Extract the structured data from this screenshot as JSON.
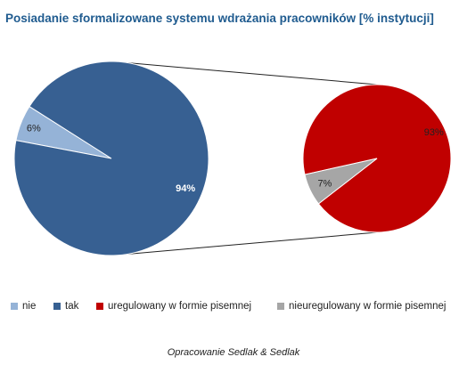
{
  "chart_data": {
    "type": "pie",
    "subtype": "pie-of-pie",
    "title": "Posiadanie sformalizowane systemu wdrażania pracowników [% instytucji]",
    "main_pie": {
      "slices": [
        {
          "name": "nie",
          "value": 6,
          "label": "6%",
          "color": "#95b3d7"
        },
        {
          "name": "tak",
          "value": 94,
          "label": "94%",
          "color": "#376092"
        }
      ]
    },
    "secondary_pie": {
      "breakdown_of": "tak",
      "slices": [
        {
          "name": "uregulowany w formie pisemnej",
          "value": 93,
          "label": "93%",
          "color": "#c00000"
        },
        {
          "name": "nieuregulowany w formie pisemnej",
          "value": 7,
          "label": "7%",
          "color": "#a6a6a6"
        }
      ]
    },
    "legend": {
      "placement": "bottom",
      "entries": [
        {
          "name": "nie",
          "color": "#95b3d7"
        },
        {
          "name": "tak",
          "color": "#376092"
        },
        {
          "name": "uregulowany w formie pisemnej",
          "color": "#c00000"
        },
        {
          "name": "nieuregulowany w formie pisemnej",
          "color": "#a6a6a6"
        }
      ]
    },
    "source_note": "Opracowanie Sedlak & Sedlak"
  }
}
